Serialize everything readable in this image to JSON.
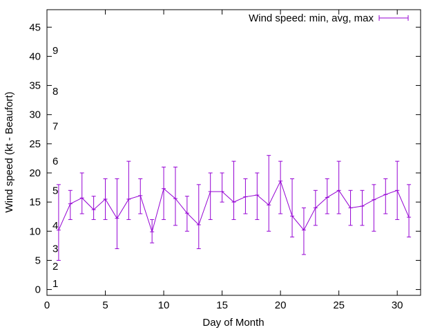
{
  "chart_data": {
    "type": "line",
    "title": "",
    "xlabel": "Day of Month",
    "ylabel": "Wind speed (kt - Beaufort)",
    "xlim": [
      0,
      32
    ],
    "ylim": [
      -1,
      48
    ],
    "x_ticks": [
      0,
      5,
      10,
      15,
      20,
      25,
      30
    ],
    "y_ticks": [
      0,
      5,
      10,
      15,
      20,
      25,
      30,
      35,
      40,
      45
    ],
    "grid": false,
    "legend_position": "top-right",
    "beaufort_labels": [
      {
        "label": "1",
        "y": 1
      },
      {
        "label": "2",
        "y": 4
      },
      {
        "label": "3",
        "y": 7
      },
      {
        "label": "4",
        "y": 11
      },
      {
        "label": "5",
        "y": 17
      },
      {
        "label": "6",
        "y": 22
      },
      {
        "label": "7",
        "y": 28
      },
      {
        "label": "8",
        "y": 34
      },
      {
        "label": "9",
        "y": 41
      }
    ],
    "series": [
      {
        "name": "Wind speed: min, avg, max",
        "color": "#9400d3",
        "x": [
          1,
          2,
          3,
          4,
          5,
          6,
          7,
          8,
          9,
          10,
          11,
          12,
          13,
          14,
          15,
          16,
          17,
          18,
          19,
          20,
          21,
          22,
          23,
          24,
          25,
          26,
          27,
          28,
          29,
          30,
          31
        ],
        "avg": [
          10.2,
          14.7,
          15.7,
          13.7,
          15.5,
          12.2,
          15.5,
          16.1,
          9.9,
          17.3,
          15.6,
          13.1,
          11.1,
          16.8,
          16.8,
          15.0,
          15.9,
          16.2,
          14.5,
          18.6,
          12.6,
          10.2,
          14.0,
          15.8,
          17.0,
          14.0,
          14.3,
          15.4,
          16.3,
          17.0,
          12.4
        ],
        "min": [
          5,
          12,
          13,
          12,
          12,
          7,
          12,
          13,
          8,
          12,
          11,
          10,
          7,
          12,
          15,
          12,
          13,
          12,
          10,
          13,
          9,
          6,
          11,
          13,
          13,
          11,
          11,
          10,
          13,
          12,
          9
        ],
        "max": [
          18,
          17,
          20,
          16,
          19,
          19,
          22,
          19,
          12,
          21,
          21,
          16,
          18,
          20,
          20,
          22,
          19,
          20,
          23,
          22,
          19,
          14,
          17,
          19,
          22,
          17,
          17,
          18,
          19,
          22,
          18
        ]
      }
    ]
  }
}
